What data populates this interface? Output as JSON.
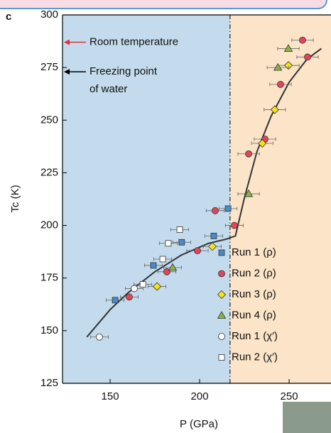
{
  "chart_data": {
    "type": "scatter",
    "panel_label": "c",
    "x_label": "P (GPa)",
    "y_label": "Tc (K)",
    "xlim": [
      123.4,
      273.4
    ],
    "ylim": [
      125,
      300
    ],
    "xticks": [
      150,
      200,
      250
    ],
    "yticks": [
      125,
      150,
      175,
      200,
      225,
      250,
      275,
      300
    ],
    "boundary_x": 217,
    "left_region_color": "#c3dbec",
    "right_region_color": "#fbe4c8",
    "legend": "lower right",
    "annotations": [
      {
        "lines": [
          "Room temperature"
        ],
        "y": 287,
        "color": "#e0303c"
      },
      {
        "lines": [
          "Freezing point",
          "of water"
        ],
        "y": 273,
        "color": "#000000"
      }
    ],
    "series": [
      {
        "name": "Run 1 (ρ)",
        "marker": "square",
        "color": "#4a8ac6",
        "x": [
          152.8,
          174.2,
          190,
          207.9,
          215.9
        ],
        "values": [
          164.5,
          181,
          192,
          195,
          208
        ],
        "x_errors": [
          5,
          5,
          5,
          5,
          5
        ]
      },
      {
        "name": "Run 2 (ρ)",
        "marker": "circle",
        "color": "#e2455a",
        "x": [
          160.7,
          181.7,
          198.8,
          208.7,
          219.4,
          227.4,
          236.5,
          245.2,
          257.5,
          260.3
        ],
        "values": [
          166,
          178,
          188,
          207,
          200,
          234,
          241,
          267,
          288,
          280
        ],
        "x_errors": [
          5,
          5,
          6,
          5,
          5,
          6,
          6,
          6,
          6,
          6
        ]
      },
      {
        "name": "Run 3 (ρ)",
        "marker": "diamond",
        "color": "#f6e21c",
        "x": [
          176.2,
          207.1,
          235,
          242,
          249.6
        ],
        "values": [
          171,
          190,
          239,
          255,
          276
        ],
        "x_errors": [
          5,
          5,
          6,
          6,
          6
        ]
      },
      {
        "name": "Run 4 (ρ)",
        "marker": "triangle",
        "color": "#8db343",
        "x": [
          184.9,
          227.4,
          243.7,
          249.6
        ],
        "values": [
          180,
          215,
          275,
          284
        ],
        "x_errors": [
          5,
          6,
          6,
          6
        ]
      },
      {
        "name": "Run 1 (χ′)",
        "marker": "circle",
        "color": "#ffffff",
        "x": [
          144,
          163.5
        ],
        "values": [
          147,
          170
        ],
        "x_errors": [
          5,
          5
        ]
      },
      {
        "name": "Run 2 (χ′)",
        "marker": "square",
        "color": "#ffffff",
        "x": [
          168.3,
          179.4,
          182.5,
          188.9
        ],
        "values": [
          172,
          184,
          191.5,
          198
        ],
        "x_errors": [
          5,
          5,
          5,
          5
        ]
      }
    ],
    "fit_curve": {
      "color": "#333333",
      "x": [
        137,
        150,
        160,
        175,
        190,
        205,
        215,
        220,
        225,
        232,
        240,
        250,
        260,
        268
      ],
      "y": [
        147,
        160,
        168,
        178,
        186,
        191.5,
        193.5,
        195,
        213,
        235,
        252,
        268,
        279,
        284
      ]
    }
  }
}
